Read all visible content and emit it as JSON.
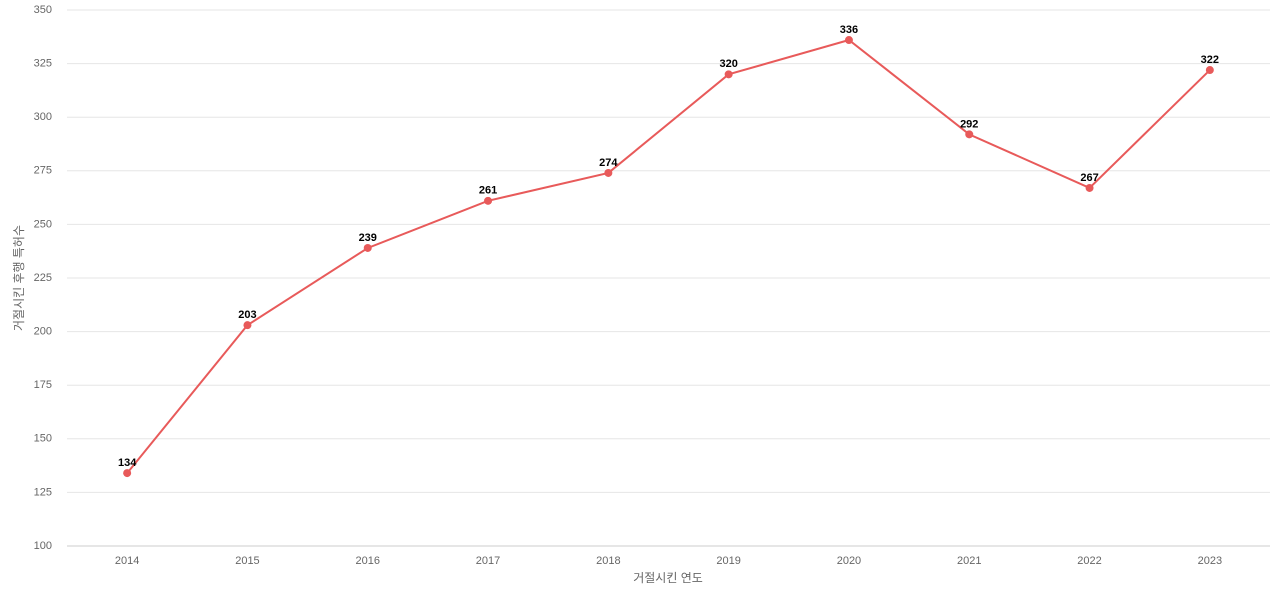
{
  "chart_data": {
    "type": "line",
    "x_label": "거절시킨 연도",
    "y_label": "거절시킨 후행 특허수",
    "categories": [
      "2014",
      "2015",
      "2016",
      "2017",
      "2018",
      "2019",
      "2020",
      "2021",
      "2022",
      "2023"
    ],
    "values": [
      134,
      203,
      239,
      261,
      274,
      320,
      336,
      292,
      267,
      322
    ],
    "color": "#e85a5a",
    "ylim": [
      100,
      350
    ],
    "yticks": [
      100,
      125,
      150,
      175,
      200,
      225,
      250,
      275,
      300,
      325,
      350
    ],
    "grid": true
  }
}
